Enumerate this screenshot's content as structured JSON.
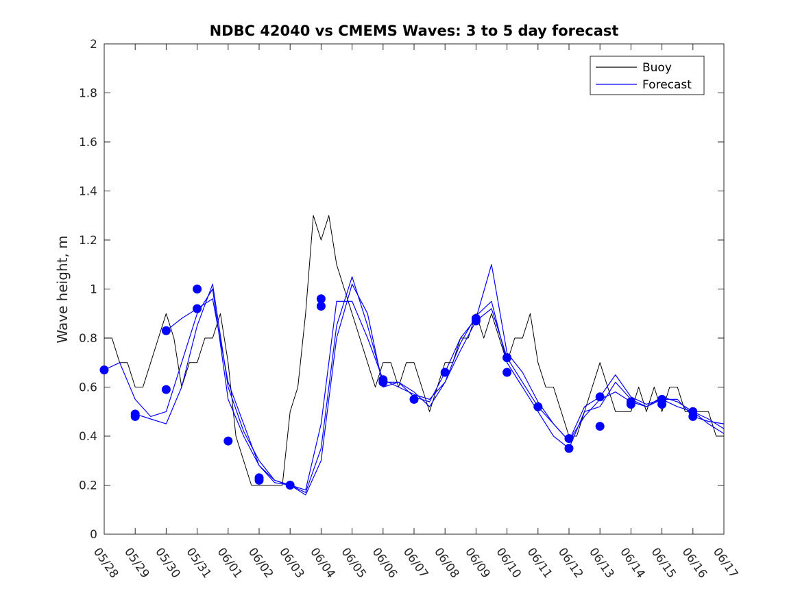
{
  "chart_data": {
    "type": "line",
    "title": "NDBC 42040 vs CMEMS Waves: 3 to 5 day forecast",
    "xlabel": "",
    "ylabel": "Wave height, m",
    "xlim": [
      "05/28",
      "06/17"
    ],
    "ylim": [
      0,
      2
    ],
    "x_tick_labels": [
      "05/28",
      "05/29",
      "05/30",
      "05/31",
      "06/01",
      "06/02",
      "06/03",
      "06/04",
      "06/05",
      "06/06",
      "06/07",
      "06/08",
      "06/09",
      "06/10",
      "06/11",
      "06/12",
      "06/13",
      "06/14",
      "06/15",
      "06/16",
      "06/17"
    ],
    "y_tick_labels": [
      "0",
      "0.2",
      "0.4",
      "0.6",
      "0.8",
      "1",
      "1.2",
      "1.4",
      "1.6",
      "1.8",
      "2"
    ],
    "y_ticks": [
      0,
      0.2,
      0.4,
      0.6,
      0.8,
      1,
      1.2,
      1.4,
      1.6,
      1.8,
      2
    ],
    "grid": false,
    "legend_position": "top-right",
    "legend": [
      {
        "label": "Buoy",
        "color": "#000000"
      },
      {
        "label": "Forecast",
        "color": "#0000ff"
      }
    ],
    "series": [
      {
        "name": "Buoy",
        "color": "#000000",
        "x": [
          "05/28 00:00",
          "05/28 06:00",
          "05/28 12:00",
          "05/28 18:00",
          "05/29 00:00",
          "05/29 06:00",
          "05/29 12:00",
          "05/29 18:00",
          "05/30 00:00",
          "05/30 06:00",
          "05/30 12:00",
          "05/30 18:00",
          "05/31 00:00",
          "05/31 06:00",
          "05/31 12:00",
          "05/31 18:00",
          "06/01 00:00",
          "06/01 06:00",
          "06/01 12:00",
          "06/01 18:00",
          "06/02 00:00",
          "06/02 06:00",
          "06/02 12:00",
          "06/02 18:00",
          "06/03 00:00",
          "06/03 06:00",
          "06/03 12:00",
          "06/03 18:00",
          "06/04 00:00",
          "06/04 06:00",
          "06/04 12:00",
          "06/04 18:00",
          "06/05 00:00",
          "06/05 06:00",
          "06/05 12:00",
          "06/05 18:00",
          "06/06 00:00",
          "06/06 06:00",
          "06/06 12:00",
          "06/06 18:00",
          "06/07 00:00",
          "06/07 06:00",
          "06/07 12:00",
          "06/07 18:00",
          "06/08 00:00",
          "06/08 06:00",
          "06/08 12:00",
          "06/08 18:00",
          "06/09 00:00",
          "06/09 06:00",
          "06/09 12:00",
          "06/09 18:00",
          "06/10 00:00",
          "06/10 06:00",
          "06/10 12:00",
          "06/10 18:00",
          "06/11 00:00",
          "06/11 06:00",
          "06/11 12:00",
          "06/11 18:00",
          "06/12 00:00",
          "06/12 06:00",
          "06/12 12:00",
          "06/12 18:00",
          "06/13 00:00",
          "06/13 06:00",
          "06/13 12:00",
          "06/13 18:00",
          "06/14 00:00",
          "06/14 06:00",
          "06/14 12:00",
          "06/14 18:00",
          "06/15 00:00",
          "06/15 06:00",
          "06/15 12:00",
          "06/15 18:00",
          "06/16 00:00",
          "06/16 06:00",
          "06/16 12:00",
          "06/16 18:00",
          "06/17 00:00"
        ],
        "values": [
          0.8,
          0.8,
          0.7,
          0.7,
          0.6,
          0.6,
          0.7,
          0.8,
          0.9,
          0.8,
          0.6,
          0.7,
          0.7,
          0.8,
          0.8,
          0.9,
          0.7,
          0.4,
          0.3,
          0.2,
          0.2,
          0.2,
          0.2,
          0.2,
          0.5,
          0.6,
          0.9,
          1.3,
          1.2,
          1.3,
          1.1,
          1.0,
          0.9,
          0.8,
          0.7,
          0.6,
          0.7,
          0.7,
          0.6,
          0.7,
          0.7,
          0.6,
          0.5,
          0.6,
          0.7,
          0.7,
          0.8,
          0.8,
          0.9,
          0.8,
          0.9,
          0.8,
          0.7,
          0.8,
          0.8,
          0.9,
          0.7,
          0.6,
          0.6,
          0.5,
          0.4,
          0.4,
          0.5,
          0.6,
          0.7,
          0.6,
          0.5,
          0.5,
          0.5,
          0.6,
          0.5,
          0.6,
          0.5,
          0.6,
          0.6,
          0.5,
          0.5,
          0.5,
          0.5,
          0.4,
          0.4
        ]
      },
      {
        "name": "",
        "color": "#0000ff",
        "x": [
          "05/28 00:00",
          "05/28 12:00",
          "05/29 00:00",
          "05/29 12:00",
          "05/30 00:00",
          "05/30 12:00",
          "05/31 00:00",
          "05/31 12:00",
          "06/01 00:00",
          "06/01 12:00",
          "06/02 00:00",
          "06/02 12:00",
          "06/03 00:00",
          "06/03 12:00",
          "06/04 00:00",
          "06/04 12:00",
          "06/05 00:00",
          "06/05 12:00",
          "06/06 00:00",
          "06/06 12:00",
          "06/07 00:00",
          "06/07 12:00",
          "06/08 00:00",
          "06/08 12:00",
          "06/09 00:00",
          "06/09 12:00",
          "06/10 00:00",
          "06/10 12:00",
          "06/11 00:00",
          "06/11 12:00",
          "06/12 00:00",
          "06/12 12:00",
          "06/13 00:00",
          "06/13 12:00",
          "06/14 00:00",
          "06/14 12:00",
          "06/15 00:00",
          "06/15 12:00",
          "06/16 00:00",
          "06/16 12:00",
          "06/17 00:00"
        ],
        "values": [
          0.67,
          0.7,
          0.55,
          0.48,
          0.5,
          0.7,
          0.9,
          1.0,
          0.55,
          0.4,
          0.28,
          0.22,
          0.2,
          0.18,
          0.45,
          0.95,
          0.95,
          0.8,
          0.63,
          0.6,
          0.57,
          0.55,
          0.62,
          0.75,
          0.87,
          0.92,
          0.72,
          0.62,
          0.52,
          0.45,
          0.38,
          0.48,
          0.55,
          0.58,
          0.54,
          0.52,
          0.55,
          0.52,
          0.5,
          0.47,
          0.43
        ]
      },
      {
        "name": "",
        "color": "#0000ff",
        "x": [
          "05/29 00:00",
          "05/29 12:00",
          "05/30 00:00",
          "05/30 12:00",
          "05/31 00:00",
          "05/31 12:00",
          "06/01 00:00",
          "06/01 12:00",
          "06/02 00:00",
          "06/02 12:00",
          "06/03 00:00",
          "06/03 12:00",
          "06/04 00:00",
          "06/04 12:00",
          "06/05 00:00",
          "06/05 12:00",
          "06/06 00:00",
          "06/06 12:00",
          "06/07 00:00",
          "06/07 12:00",
          "06/08 00:00",
          "06/08 12:00",
          "06/09 00:00",
          "06/09 12:00",
          "06/10 00:00",
          "06/10 12:00",
          "06/11 00:00",
          "06/11 12:00",
          "06/12 00:00",
          "06/12 12:00",
          "06/13 00:00",
          "06/13 12:00",
          "06/14 00:00",
          "06/14 12:00",
          "06/15 00:00",
          "06/15 12:00",
          "06/16 00:00",
          "06/16 12:00",
          "06/17 00:00"
        ],
        "values": [
          0.49,
          0.47,
          0.45,
          0.6,
          0.85,
          1.02,
          0.6,
          0.42,
          0.3,
          0.22,
          0.2,
          0.17,
          0.35,
          0.85,
          1.05,
          0.85,
          0.62,
          0.62,
          0.58,
          0.52,
          0.62,
          0.78,
          0.89,
          0.95,
          0.7,
          0.6,
          0.5,
          0.4,
          0.35,
          0.5,
          0.52,
          0.62,
          0.55,
          0.52,
          0.56,
          0.54,
          0.5,
          0.45,
          0.41
        ]
      },
      {
        "name": "",
        "color": "#0000ff",
        "x": [
          "05/30 00:00",
          "05/30 12:00",
          "05/31 00:00",
          "05/31 12:00",
          "06/01 00:00",
          "06/01 12:00",
          "06/02 00:00",
          "06/02 12:00",
          "06/03 00:00",
          "06/03 12:00",
          "06/04 00:00",
          "06/04 12:00",
          "06/05 00:00",
          "06/05 12:00",
          "06/06 00:00",
          "06/06 12:00",
          "06/07 00:00",
          "06/07 12:00",
          "06/08 00:00",
          "06/08 12:00",
          "06/09 00:00",
          "06/09 12:00",
          "06/10 00:00",
          "06/10 12:00",
          "06/11 00:00",
          "06/11 12:00",
          "06/12 00:00",
          "06/12 12:00",
          "06/13 00:00",
          "06/13 12:00",
          "06/14 00:00",
          "06/14 12:00",
          "06/15 00:00",
          "06/15 12:00",
          "06/16 00:00",
          "06/16 12:00",
          "06/17 00:00"
        ],
        "values": [
          0.83,
          0.88,
          0.92,
          0.96,
          0.62,
          0.45,
          0.28,
          0.21,
          0.2,
          0.16,
          0.3,
          0.8,
          1.02,
          0.9,
          0.6,
          0.62,
          0.56,
          0.54,
          0.66,
          0.8,
          0.88,
          1.1,
          0.74,
          0.66,
          0.54,
          0.45,
          0.38,
          0.52,
          0.56,
          0.65,
          0.56,
          0.53,
          0.55,
          0.55,
          0.48,
          0.46,
          0.45
        ]
      }
    ],
    "markers": {
      "color": "#0000ff",
      "x": [
        "05/28 00:00",
        "05/29 00:00",
        "05/29 00:00",
        "05/30 00:00",
        "05/30 00:00",
        "05/31 00:00",
        "05/31 00:00",
        "06/01 00:00",
        "06/02 00:00",
        "06/02 00:00",
        "06/03 00:00",
        "06/04 00:00",
        "06/04 00:00",
        "06/06 00:00",
        "06/06 00:00",
        "06/07 00:00",
        "06/08 00:00",
        "06/09 00:00",
        "06/09 00:00",
        "06/10 00:00",
        "06/10 00:00",
        "06/11 00:00",
        "06/12 00:00",
        "06/12 00:00",
        "06/13 00:00",
        "06/13 00:00",
        "06/14 00:00",
        "06/14 00:00",
        "06/15 00:00",
        "06/15 00:00",
        "06/16 00:00",
        "06/16 00:00"
      ],
      "values": [
        0.67,
        0.49,
        0.48,
        0.59,
        0.83,
        1.0,
        0.92,
        0.38,
        0.23,
        0.22,
        0.2,
        0.96,
        0.93,
        0.63,
        0.62,
        0.55,
        0.66,
        0.88,
        0.87,
        0.72,
        0.66,
        0.52,
        0.39,
        0.35,
        0.56,
        0.44,
        0.54,
        0.53,
        0.55,
        0.53,
        0.5,
        0.48
      ]
    }
  }
}
